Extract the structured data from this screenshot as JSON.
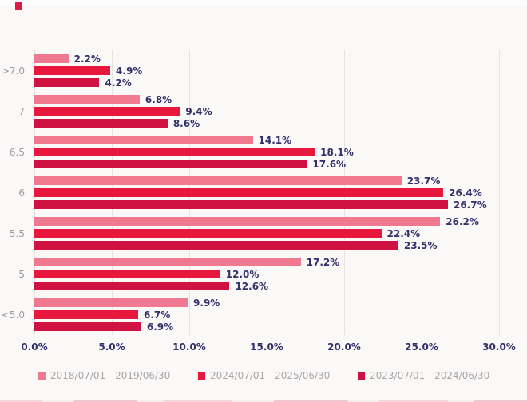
{
  "logo_color": "#DD1B46",
  "chart_data": {
    "type": "bar",
    "orientation": "horizontal",
    "categories": [
      ">7.0",
      "7",
      "6.5",
      "6",
      "5.5",
      "5",
      "<5.0"
    ],
    "series": [
      {
        "name": "2018/07/01 - 2019/06/30",
        "color": "#F0788F",
        "values": [
          2.2,
          6.8,
          14.1,
          23.7,
          26.2,
          17.2,
          9.9
        ]
      },
      {
        "name": "2024/07/01 - 2025/06/30",
        "color": "#E7173E",
        "values": [
          4.9,
          9.4,
          18.1,
          26.4,
          22.4,
          12.0,
          6.7
        ]
      },
      {
        "name": "2023/07/01 - 2024/06/30",
        "color": "#D01243",
        "values": [
          4.2,
          8.6,
          17.6,
          26.7,
          23.5,
          12.6,
          6.9
        ]
      }
    ],
    "value_suffix": "%",
    "xlim": [
      0,
      30
    ],
    "x_tick_labels": [
      "0.0%",
      "5.0%",
      "10.0%",
      "15.0%",
      "20.0%",
      "25.0%",
      "30.0%"
    ],
    "grid": "vertical",
    "legend_position": "bottom",
    "value_label_color": "#32316C",
    "category_label_color": "#9C9BA0",
    "tick_label_color": "#32316C",
    "legend_text_color": "#ACA5A8",
    "gridline_color": "#E8E2E4",
    "background_color": "#FBF8F8"
  }
}
